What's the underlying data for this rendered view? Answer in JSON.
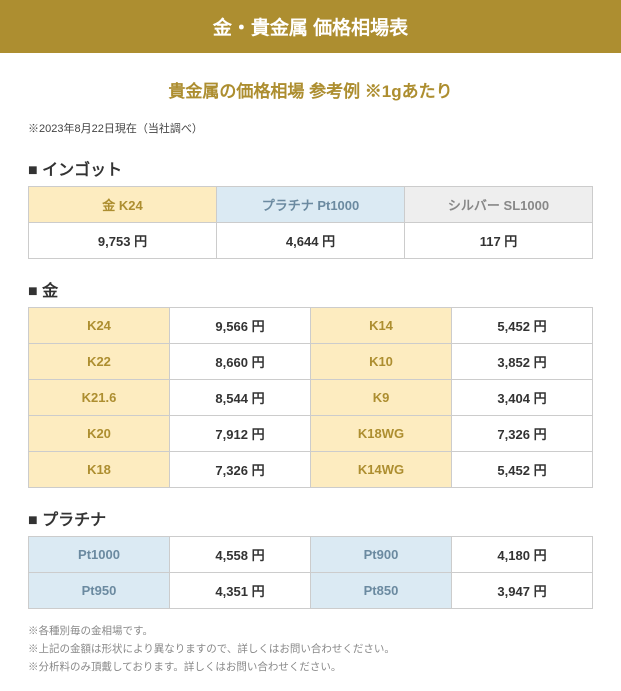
{
  "header": {
    "title": "金・貴金属 価格相場表"
  },
  "subtitle": "貴金属の価格相場 参考例 ※1gあたり",
  "asof": "※2023年8月22日現在（当社調べ）",
  "colors": {
    "brand": "#ad8e30",
    "gold_bg": "#fdecc0",
    "gold_fg": "#ad8e30",
    "plat_bg": "#dbeaf3",
    "plat_fg": "#6b8aa0",
    "silver_bg": "#eeeeee",
    "silver_fg": "#888888",
    "border": "#cccccc",
    "note": "#888888"
  },
  "sections": {
    "ingot": {
      "title": "■ インゴット",
      "headers": [
        {
          "label": "金 K24",
          "style": "gold"
        },
        {
          "label": "プラチナ Pt1000",
          "style": "plat"
        },
        {
          "label": "シルバー SL1000",
          "style": "silver"
        }
      ],
      "values": [
        "9,753 円",
        "4,644 円",
        "117 円"
      ]
    },
    "gold": {
      "title": "■ 金",
      "rows": [
        {
          "l_label": "K24",
          "l_value": "9,566 円",
          "r_label": "K14",
          "r_value": "5,452 円"
        },
        {
          "l_label": "K22",
          "l_value": "8,660 円",
          "r_label": "K10",
          "r_value": "3,852 円"
        },
        {
          "l_label": "K21.6",
          "l_value": "8,544 円",
          "r_label": "K9",
          "r_value": "3,404 円"
        },
        {
          "l_label": "K20",
          "l_value": "7,912 円",
          "r_label": "K18WG",
          "r_value": "7,326 円"
        },
        {
          "l_label": "K18",
          "l_value": "7,326 円",
          "r_label": "K14WG",
          "r_value": "5,452 円"
        }
      ]
    },
    "platinum": {
      "title": "■ プラチナ",
      "rows": [
        {
          "l_label": "Pt1000",
          "l_value": "4,558 円",
          "r_label": "Pt900",
          "r_value": "4,180 円"
        },
        {
          "l_label": "Pt950",
          "l_value": "4,351 円",
          "r_label": "Pt850",
          "r_value": "3,947 円"
        }
      ]
    }
  },
  "notes": [
    "※各種別毎の金相場です。",
    "※上記の金額は形状により異なりますので、詳しくはお問い合わせください。",
    "※分析料のみ頂戴しております。詳しくはお問い合わせください。"
  ]
}
